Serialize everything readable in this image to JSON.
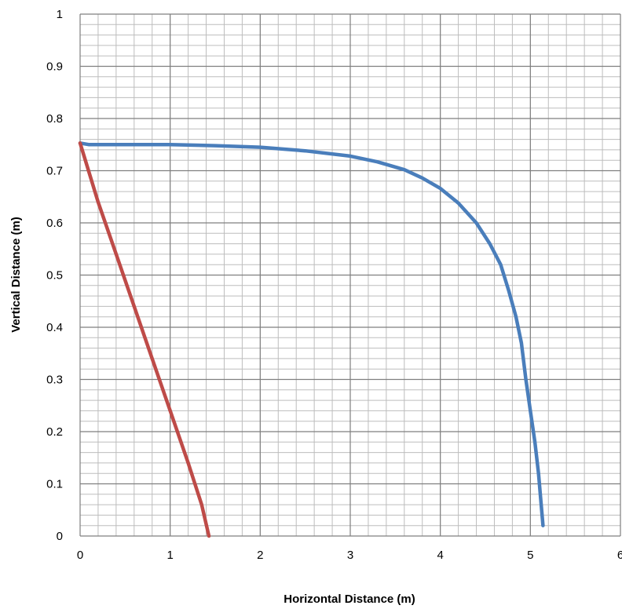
{
  "chart_data": {
    "type": "line",
    "title": "",
    "xlabel": "Horizontal Distance (m)",
    "ylabel": "Vertical Distance (m)",
    "xlim": [
      0,
      6
    ],
    "ylim": [
      0,
      1
    ],
    "xticks": [
      0,
      1,
      2,
      3,
      4,
      5,
      6
    ],
    "xtick_labels": [
      "0",
      "1",
      "2",
      "3",
      "4",
      "5",
      "6"
    ],
    "yticks": [
      0,
      0.1,
      0.2,
      0.3,
      0.4,
      0.5,
      0.6,
      0.7,
      0.8,
      0.9,
      1
    ],
    "ytick_labels": [
      "0",
      "0.1",
      "0.2",
      "0.3",
      "0.4",
      "0.5",
      "0.6",
      "0.7",
      "0.8",
      "0.9",
      "1"
    ],
    "grid": true,
    "minor_grid": {
      "x_step": 0.2,
      "y_step": 0.02
    },
    "legend": "none",
    "series": [
      {
        "color": "#4a7ebb",
        "points": [
          [
            0,
            0.753
          ],
          [
            0.1,
            0.75
          ],
          [
            0.5,
            0.75
          ],
          [
            1.0,
            0.75
          ],
          [
            1.5,
            0.748
          ],
          [
            2.0,
            0.745
          ],
          [
            2.5,
            0.738
          ],
          [
            3.0,
            0.728
          ],
          [
            3.3,
            0.717
          ],
          [
            3.6,
            0.702
          ],
          [
            3.8,
            0.686
          ],
          [
            4.0,
            0.666
          ],
          [
            4.2,
            0.638
          ],
          [
            4.4,
            0.6
          ],
          [
            4.55,
            0.56
          ],
          [
            4.67,
            0.52
          ],
          [
            4.76,
            0.47
          ],
          [
            4.84,
            0.42
          ],
          [
            4.9,
            0.37
          ],
          [
            4.95,
            0.3
          ],
          [
            5.0,
            0.24
          ],
          [
            5.05,
            0.18
          ],
          [
            5.09,
            0.12
          ],
          [
            5.12,
            0.06
          ],
          [
            5.14,
            0.02
          ]
        ]
      },
      {
        "color": "#be4b48",
        "points": [
          [
            0,
            0.753
          ],
          [
            0.2,
            0.64
          ],
          [
            0.4,
            0.54
          ],
          [
            0.6,
            0.44
          ],
          [
            0.8,
            0.34
          ],
          [
            1.0,
            0.24
          ],
          [
            1.2,
            0.14
          ],
          [
            1.35,
            0.06
          ],
          [
            1.43,
            0.0
          ]
        ]
      }
    ]
  }
}
